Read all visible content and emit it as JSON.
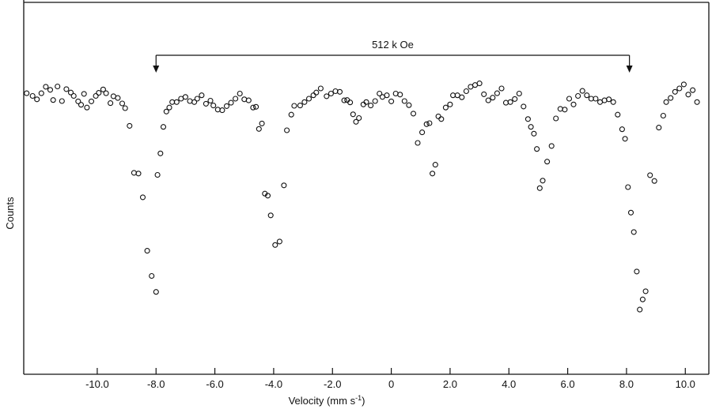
{
  "chart_data": {
    "type": "scatter",
    "title": "",
    "xlabel": "Velocity (mm s",
    "xlabel_sup": "-1",
    "xlabel_close": ")",
    "ylabel": "Counts",
    "xlim": [
      -12.5,
      10.8
    ],
    "ylim": [
      0,
      1.1
    ],
    "grid": false,
    "xticks": [
      -10.0,
      -8.0,
      -6.0,
      -4.0,
      -2.0,
      0,
      2.0,
      4.0,
      6.0,
      8.0,
      10.0
    ],
    "xtick_labels": [
      "-10.0",
      "-8.0",
      "-6.0",
      "-4.0",
      "-2.0",
      "0",
      "2.0",
      "4.0",
      "6.0",
      "8.0",
      "10.0"
    ],
    "annotation": {
      "text": "512 k Oe",
      "x_from": -8.0,
      "x_to": 8.1
    },
    "series": [
      {
        "marker": "open-circle",
        "x": [
          -12.4,
          -12.2,
          -12.05,
          -11.9,
          -11.75,
          -11.6,
          -11.5,
          -11.35,
          -11.2,
          -11.05,
          -10.9,
          -10.8,
          -10.65,
          -10.55,
          -10.45,
          -10.35,
          -10.2,
          -10.05,
          -9.95,
          -9.8,
          -9.7,
          -9.55,
          -9.45,
          -9.3,
          -9.15,
          -9.05,
          -8.9,
          -8.75,
          -8.6,
          -8.45,
          -8.3,
          -8.15,
          -8.0,
          -7.95,
          -7.85,
          -7.75,
          -7.65,
          -7.55,
          -7.45,
          -7.3,
          -7.15,
          -7.0,
          -6.85,
          -6.7,
          -6.6,
          -6.45,
          -6.3,
          -6.15,
          -6.05,
          -5.9,
          -5.75,
          -5.6,
          -5.45,
          -5.3,
          -5.15,
          -5.0,
          -4.85,
          -4.7,
          -4.6,
          -4.5,
          -4.4,
          -4.3,
          -4.2,
          -4.1,
          -3.95,
          -3.8,
          -3.65,
          -3.55,
          -3.4,
          -3.3,
          -3.1,
          -2.95,
          -2.8,
          -2.65,
          -2.55,
          -2.4,
          -2.2,
          -2.05,
          -1.9,
          -1.75,
          -1.6,
          -1.5,
          -1.4,
          -1.3,
          -1.2,
          -1.1,
          -0.95,
          -0.85,
          -0.7,
          -0.55,
          -0.4,
          -0.3,
          -0.15,
          0.0,
          0.15,
          0.3,
          0.45,
          0.6,
          0.75,
          0.9,
          1.05,
          1.2,
          1.3,
          1.4,
          1.5,
          1.6,
          1.7,
          1.85,
          2.0,
          2.1,
          2.25,
          2.4,
          2.55,
          2.7,
          2.85,
          3.0,
          3.15,
          3.3,
          3.45,
          3.6,
          3.75,
          3.9,
          4.05,
          4.2,
          4.35,
          4.5,
          4.65,
          4.75,
          4.85,
          4.95,
          5.05,
          5.15,
          5.3,
          5.45,
          5.6,
          5.75,
          5.9,
          6.05,
          6.2,
          6.35,
          6.5,
          6.65,
          6.8,
          6.95,
          7.1,
          7.25,
          7.4,
          7.55,
          7.7,
          7.85,
          7.95,
          8.05,
          8.15,
          8.25,
          8.35,
          8.45,
          8.55,
          8.65,
          8.8,
          8.95,
          9.1,
          9.25,
          9.35,
          9.5,
          9.65,
          9.8,
          9.95,
          10.1,
          10.25,
          10.4
        ],
        "y": [
          0.826,
          0.818,
          0.808,
          0.826,
          0.845,
          0.836,
          0.806,
          0.846,
          0.803,
          0.838,
          0.828,
          0.818,
          0.802,
          0.792,
          0.824,
          0.784,
          0.802,
          0.818,
          0.827,
          0.837,
          0.826,
          0.797,
          0.817,
          0.812,
          0.796,
          0.782,
          0.73,
          0.592,
          0.59,
          0.52,
          0.363,
          0.289,
          0.242,
          0.586,
          0.649,
          0.727,
          0.772,
          0.784,
          0.8,
          0.8,
          0.81,
          0.815,
          0.803,
          0.8,
          0.81,
          0.82,
          0.795,
          0.804,
          0.79,
          0.778,
          0.776,
          0.788,
          0.798,
          0.81,
          0.825,
          0.808,
          0.805,
          0.784,
          0.786,
          0.721,
          0.737,
          0.531,
          0.525,
          0.467,
          0.38,
          0.39,
          0.555,
          0.717,
          0.763,
          0.789,
          0.79,
          0.8,
          0.81,
          0.82,
          0.828,
          0.84,
          0.817,
          0.825,
          0.832,
          0.83,
          0.805,
          0.806,
          0.799,
          0.764,
          0.742,
          0.753,
          0.793,
          0.8,
          0.79,
          0.803,
          0.825,
          0.815,
          0.82,
          0.802,
          0.825,
          0.822,
          0.803,
          0.791,
          0.766,
          0.68,
          0.711,
          0.735,
          0.738,
          0.59,
          0.616,
          0.758,
          0.75,
          0.784,
          0.793,
          0.82,
          0.82,
          0.814,
          0.832,
          0.845,
          0.85,
          0.855,
          0.823,
          0.805,
          0.813,
          0.826,
          0.84,
          0.798,
          0.8,
          0.809,
          0.825,
          0.787,
          0.75,
          0.727,
          0.707,
          0.662,
          0.547,
          0.569,
          0.625,
          0.671,
          0.752,
          0.78,
          0.778,
          0.81,
          0.793,
          0.818,
          0.833,
          0.82,
          0.81,
          0.81,
          0.8,
          0.805,
          0.808,
          0.8,
          0.763,
          0.72,
          0.692,
          0.55,
          0.475,
          0.418,
          0.302,
          0.19,
          0.22,
          0.244,
          0.585,
          0.568,
          0.725,
          0.76,
          0.8,
          0.812,
          0.83,
          0.84,
          0.852,
          0.822,
          0.835,
          0.8
        ]
      }
    ]
  }
}
